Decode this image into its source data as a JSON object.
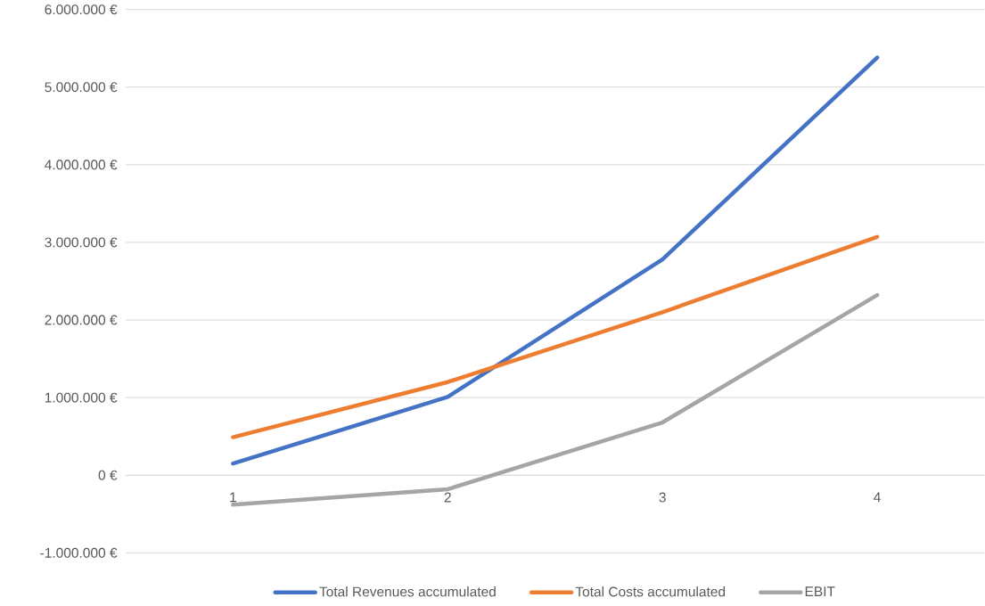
{
  "chart_data": {
    "type": "line",
    "categories": [
      "1",
      "2",
      "3",
      "4"
    ],
    "series": [
      {
        "name": "Total Revenues accumulated",
        "color": "#4472c4",
        "values": [
          150000,
          1010000,
          2780000,
          5380000
        ]
      },
      {
        "name": "Total Costs accumulated",
        "color": "#ed7d31",
        "values": [
          490000,
          1200000,
          2100000,
          3070000
        ]
      },
      {
        "name": "EBIT",
        "color": "#a5a5a5",
        "values": [
          -380000,
          -180000,
          680000,
          2320000
        ]
      }
    ],
    "ylim": [
      -1000000,
      6000000
    ],
    "yticks": [
      {
        "value": -1000000,
        "label": "-1.000.000 €"
      },
      {
        "value": 0,
        "label": "0 €"
      },
      {
        "value": 1000000,
        "label": "1.000.000 €"
      },
      {
        "value": 2000000,
        "label": "2.000.000 €"
      },
      {
        "value": 3000000,
        "label": "3.000.000 €"
      },
      {
        "value": 4000000,
        "label": "4.000.000 €"
      },
      {
        "value": 5000000,
        "label": "5.000.000 €"
      },
      {
        "value": 6000000,
        "label": "6.000.000 €"
      }
    ],
    "grid": "y",
    "legend": "bottom",
    "marker": "none",
    "line_style": "solid"
  }
}
